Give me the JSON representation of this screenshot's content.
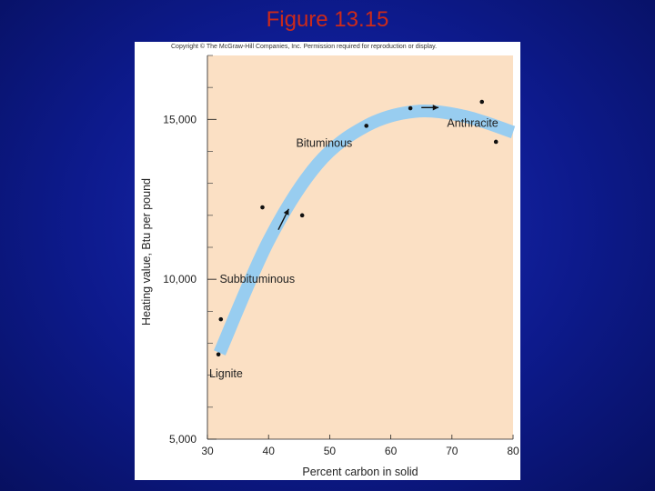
{
  "slide": {
    "title": "Figure 13.15"
  },
  "figure": {
    "copyright": "Copyright © The McGraw-Hill Companies, Inc. Permission required for reproduction or display."
  },
  "chart_data": {
    "type": "scatter",
    "xlabel": "Percent carbon in solid",
    "ylabel": "Heating value, Btu per pound",
    "xlim": [
      30,
      80
    ],
    "ylim": [
      5000,
      17000
    ],
    "x_ticks": [
      30,
      40,
      50,
      60,
      70,
      80
    ],
    "y_ticks": [
      5000,
      10000,
      15000
    ],
    "y_tick_labels": [
      "5,000",
      "10,000",
      "15,000"
    ],
    "points": [
      {
        "x": 31.8,
        "y": 7650
      },
      {
        "x": 32.2,
        "y": 8750
      },
      {
        "x": 39,
        "y": 12250
      },
      {
        "x": 45.5,
        "y": 12000
      },
      {
        "x": 56,
        "y": 14800
      },
      {
        "x": 63.2,
        "y": 15350
      },
      {
        "x": 74.9,
        "y": 15550
      },
      {
        "x": 77.2,
        "y": 14300
      }
    ],
    "trend_band": [
      {
        "x": 32,
        "y": 7700
      },
      {
        "x": 40,
        "y": 11200
      },
      {
        "x": 48,
        "y": 13600
      },
      {
        "x": 56,
        "y": 14800
      },
      {
        "x": 64,
        "y": 15250
      },
      {
        "x": 72,
        "y": 15100
      },
      {
        "x": 80,
        "y": 14600
      }
    ],
    "annotations": [
      {
        "text": "Lignite",
        "x": 30.3,
        "y": 7050
      },
      {
        "text": "Subbituminous",
        "x": 32,
        "y": 10000
      },
      {
        "text": "Bituminous",
        "x": 44.5,
        "y": 14250
      },
      {
        "text": "Anthracite",
        "x": 69.2,
        "y": 14880
      }
    ],
    "grid": false,
    "colors": {
      "plot_background": "#fbe0c4",
      "band": "#98cdf0",
      "points": "#111111",
      "slide_title": "#cc2a1a"
    }
  }
}
